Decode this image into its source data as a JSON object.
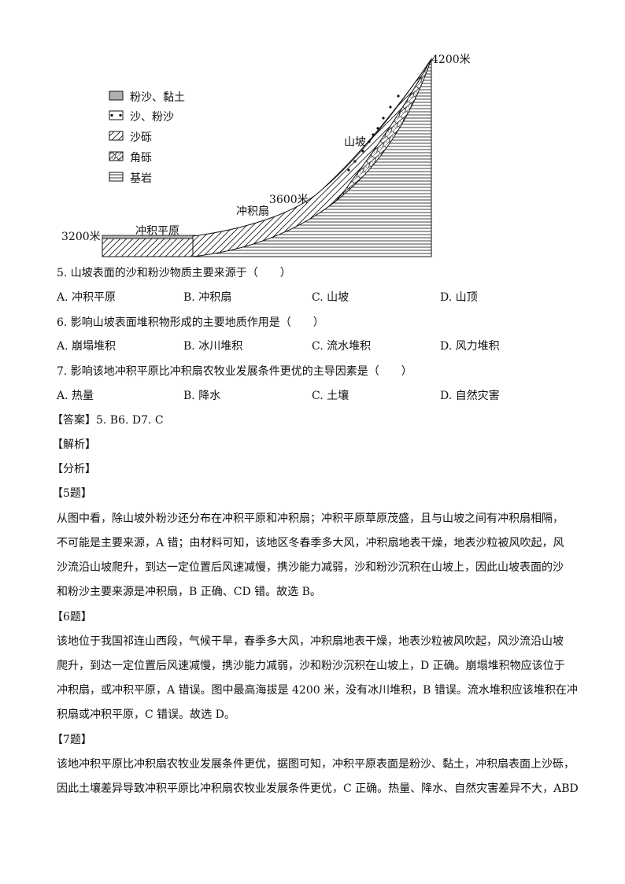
{
  "diagram": {
    "legend": [
      {
        "label": "粉沙、黏土",
        "pattern": "gray-fill"
      },
      {
        "label": "沙、粉沙",
        "pattern": "dots"
      },
      {
        "label": "沙砾",
        "pattern": "diagonal-hatch"
      },
      {
        "label": "角砾",
        "pattern": "brick-hatch"
      },
      {
        "label": "基岩",
        "pattern": "horizontal-lines"
      }
    ],
    "labels": {
      "peak": "4200米",
      "base": "3200米",
      "fan_top": "3600米",
      "slope": "山坡",
      "fan": "冲积扇",
      "plain": "冲积平原"
    },
    "colors": {
      "silt_clay": "#b0b0b0",
      "line": "#111111"
    }
  },
  "questions": [
    {
      "stem": "5. 山坡表面的沙和粉沙物质主要来源于（　　）",
      "options": [
        "A. 冲积平原",
        "B. 冲积扇",
        "C. 山坡",
        "D. 山顶"
      ]
    },
    {
      "stem": "6. 影响山坡表面堆积物形成的主要地质作用是（　　）",
      "options": [
        "A. 崩塌堆积",
        "B. 冰川堆积",
        "C. 流水堆积",
        "D. 风力堆积"
      ]
    },
    {
      "stem": "7. 影响该地冲积平原比冲积扇农牧业发展条件更优的主导因素是（　　）",
      "options": [
        "A. 热量",
        "B. 降水",
        "C. 土壤",
        "D. 自然灾害"
      ]
    }
  ],
  "answer": "【答案】5. B6. D7. C",
  "jiexi": "【解析】",
  "fenxi": "【分析】",
  "sections": [
    {
      "title": "【5题】",
      "lines": [
        "从图中看，除山坡外粉沙还分布在冲积平原和冲积扇；冲积平原草原茂盛，且与山坡之间有冲积扇相隔，",
        "不可能是主要来源，A 错；由材料可知，该地区冬春季多大风，冲积扇地表干燥，地表沙粒被风吹起，风",
        "沙流沿山坡爬升，到达一定位置后风速减慢，携沙能力减弱，沙和粉沙沉积在山坡上，因此山坡表面的沙",
        "和粉沙主要来源是冲积扇，B 正确、CD 错。故选 B。"
      ]
    },
    {
      "title": "【6题】",
      "lines": [
        "该地位于我国祁连山西段，气候干旱，春季多大风，冲积扇地表干燥，地表沙粒被风吹起，风沙流沿山坡",
        "爬升，到达一定位置后风速减慢，携沙能力减弱，沙和粉沙沉积在山坡上，D 正确。崩塌堆积物应该位于",
        "冲积扇，或冲积平原，A 错误。图中最高海拔是 4200 米，没有冰川堆积，B 错误。流水堆积应该堆积在冲",
        "积扇或冲积平原，C 错误。故选 D。"
      ]
    },
    {
      "title": "【7题】",
      "lines": [
        "该地冲积平原比冲积扇农牧业发展条件更优，据图可知，冲积平原表面是粉沙、黏土，冲积扇表面上沙砾，",
        "因此土壤差异导致冲积平原比冲积扇农牧业发展条件更优，C 正确。热量、降水、自然灾害差异不大，ABD"
      ]
    }
  ]
}
